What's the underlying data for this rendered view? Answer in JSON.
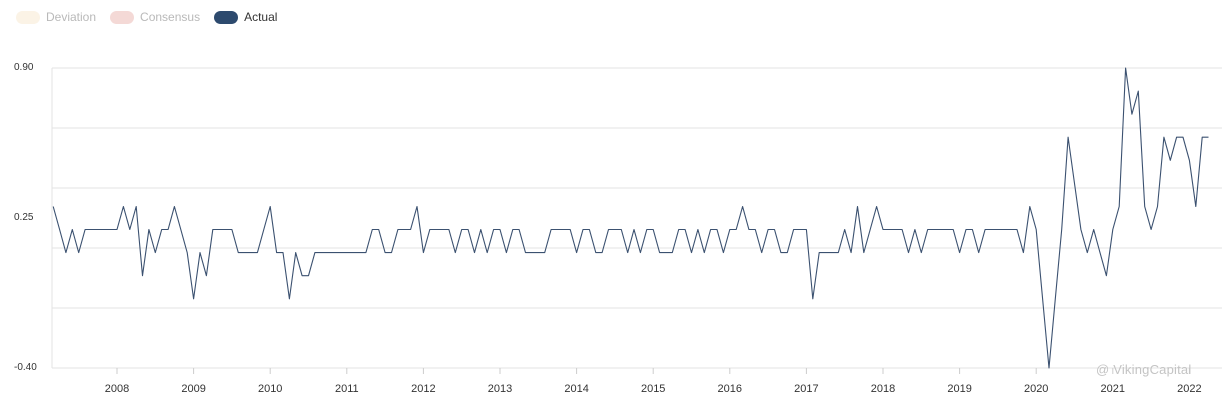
{
  "legend": {
    "items": [
      {
        "label": "Deviation",
        "color": "#fbf3e6",
        "active": false
      },
      {
        "label": "Consensus",
        "color": "#f4d9d6",
        "active": false
      },
      {
        "label": "Actual",
        "color": "#2d4a6e",
        "active": true
      }
    ]
  },
  "watermark": "@ VikingCapital",
  "chart_data": {
    "type": "line",
    "title": "",
    "xlabel": "",
    "ylabel": "",
    "ylim": [
      -0.4,
      0.9
    ],
    "y_ticks_labeled": [
      "0.90",
      "0.25",
      "-0.40"
    ],
    "x_ticks": [
      "2008",
      "2009",
      "2010",
      "2011",
      "2012",
      "2013",
      "2014",
      "2015",
      "2016",
      "2017",
      "2018",
      "2019",
      "2020",
      "2021",
      "2022"
    ],
    "grid": true,
    "legend_position": "top-left",
    "series": [
      {
        "name": "Actual",
        "color": "#3b5170",
        "x_start": "2007-03",
        "frequency": "monthly",
        "values": [
          0.3,
          0.2,
          0.1,
          0.2,
          0.1,
          0.2,
          0.2,
          0.2,
          0.2,
          0.2,
          0.2,
          0.3,
          0.2,
          0.3,
          0.0,
          0.2,
          0.1,
          0.2,
          0.2,
          0.3,
          0.2,
          0.1,
          -0.1,
          0.1,
          0.0,
          0.2,
          0.2,
          0.2,
          0.2,
          0.1,
          0.1,
          0.1,
          0.1,
          0.2,
          0.3,
          0.1,
          0.1,
          -0.1,
          0.1,
          0.0,
          0.0,
          0.1,
          0.1,
          0.1,
          0.1,
          0.1,
          0.1,
          0.1,
          0.1,
          0.1,
          0.2,
          0.2,
          0.1,
          0.1,
          0.2,
          0.2,
          0.2,
          0.3,
          0.1,
          0.2,
          0.2,
          0.2,
          0.2,
          0.1,
          0.2,
          0.2,
          0.1,
          0.2,
          0.1,
          0.2,
          0.2,
          0.1,
          0.2,
          0.2,
          0.1,
          0.1,
          0.1,
          0.1,
          0.2,
          0.2,
          0.2,
          0.2,
          0.1,
          0.2,
          0.2,
          0.1,
          0.1,
          0.2,
          0.2,
          0.2,
          0.1,
          0.2,
          0.1,
          0.2,
          0.2,
          0.1,
          0.1,
          0.1,
          0.2,
          0.2,
          0.1,
          0.2,
          0.1,
          0.2,
          0.2,
          0.1,
          0.2,
          0.2,
          0.3,
          0.2,
          0.2,
          0.1,
          0.2,
          0.2,
          0.1,
          0.1,
          0.2,
          0.2,
          0.2,
          -0.1,
          0.1,
          0.1,
          0.1,
          0.1,
          0.2,
          0.1,
          0.3,
          0.1,
          0.2,
          0.3,
          0.2,
          0.2,
          0.2,
          0.2,
          0.1,
          0.2,
          0.1,
          0.2,
          0.2,
          0.2,
          0.2,
          0.2,
          0.1,
          0.2,
          0.2,
          0.1,
          0.2,
          0.2,
          0.2,
          0.2,
          0.2,
          0.2,
          0.1,
          0.3,
          0.2,
          -0.1,
          -0.4,
          -0.1,
          0.2,
          0.6,
          0.4,
          0.2,
          0.1,
          0.2,
          0.1,
          0.0,
          0.2,
          0.3,
          0.9,
          0.7,
          0.8,
          0.3,
          0.2,
          0.3,
          0.6,
          0.5,
          0.6,
          0.6,
          0.5,
          0.3,
          0.6,
          0.6
        ]
      }
    ]
  }
}
